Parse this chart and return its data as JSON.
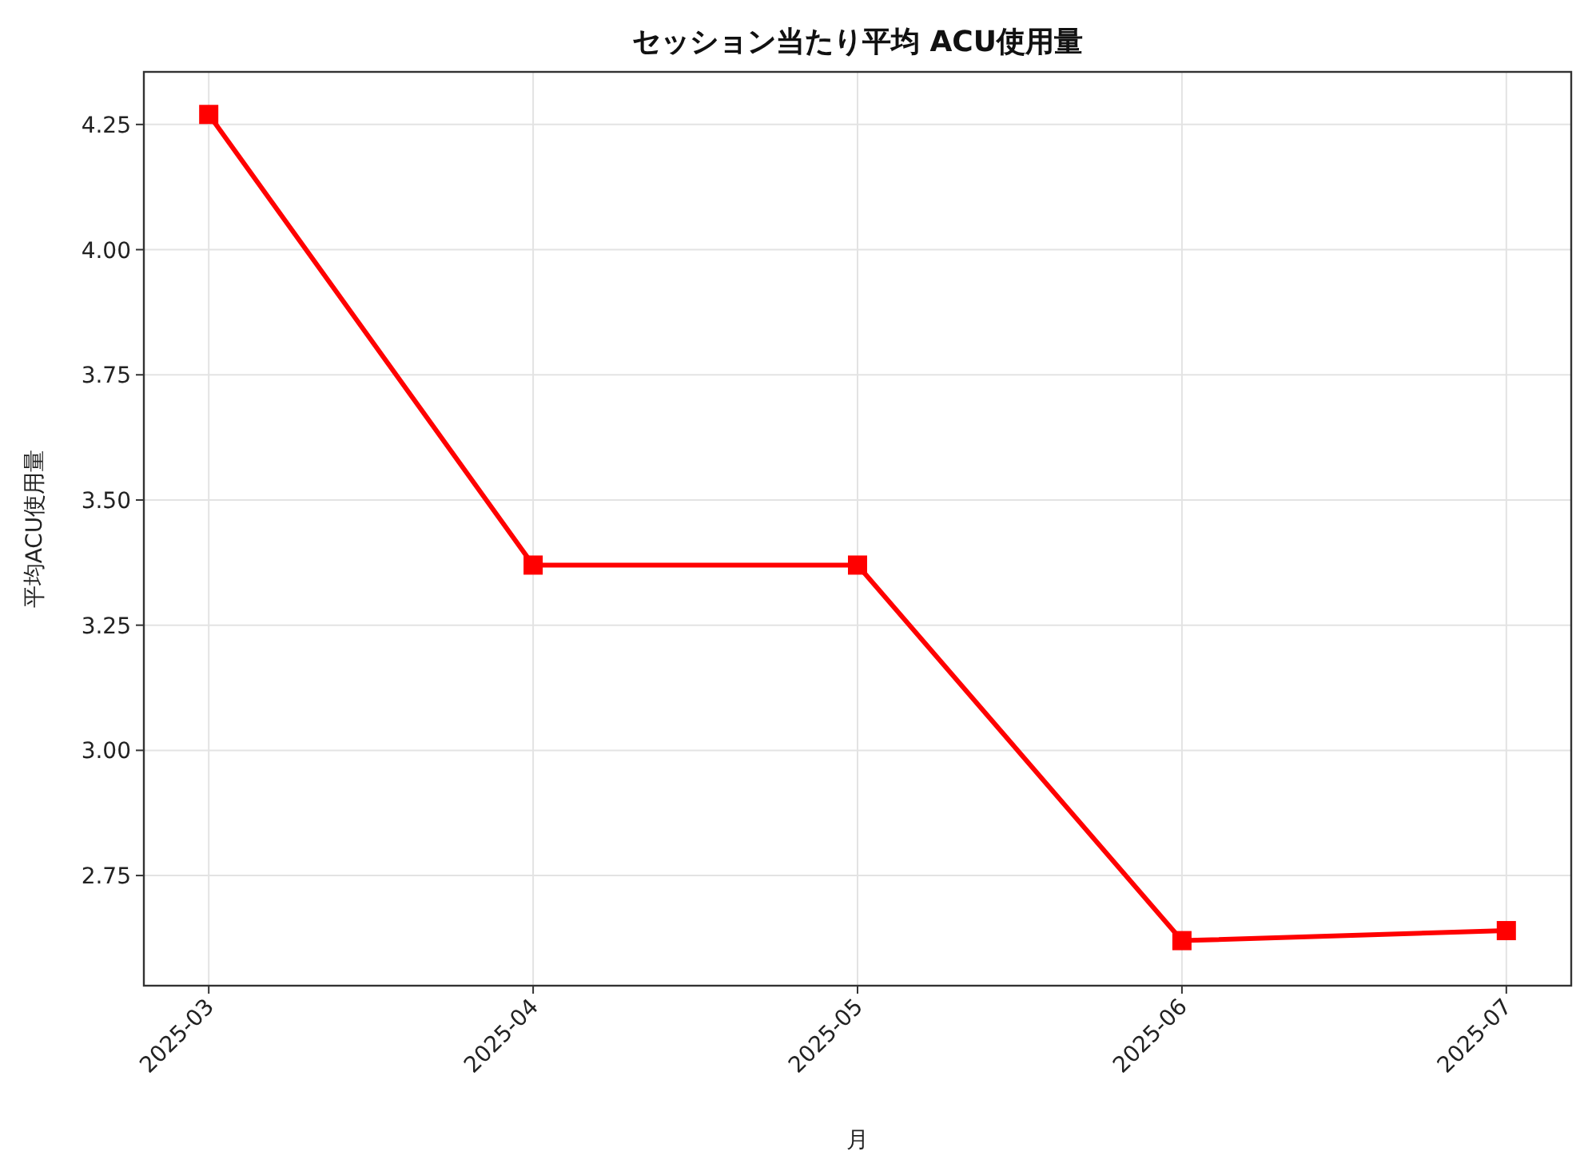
{
  "chart_data": {
    "type": "line",
    "title": "セッション当たり平均 ACU使用量",
    "xlabel": "月",
    "ylabel": "平均ACU使用量",
    "categories": [
      "2025-03",
      "2025-04",
      "2025-05",
      "2025-06",
      "2025-07"
    ],
    "series": [
      {
        "color": "#ff0000",
        "values": [
          4.27,
          3.37,
          3.37,
          2.62,
          2.64
        ]
      }
    ],
    "ylim": [
      2.53,
      4.355
    ],
    "yticks": [
      {
        "value": 2.75,
        "label": "2.75"
      },
      {
        "value": 3.0,
        "label": "3.00"
      },
      {
        "value": 3.25,
        "label": "3.25"
      },
      {
        "value": 3.5,
        "label": "3.50"
      },
      {
        "value": 3.75,
        "label": "3.75"
      },
      {
        "value": 4.0,
        "label": "4.00"
      },
      {
        "value": 4.25,
        "label": "4.25"
      }
    ],
    "grid": true,
    "marker": "square",
    "line_style": "solid"
  }
}
